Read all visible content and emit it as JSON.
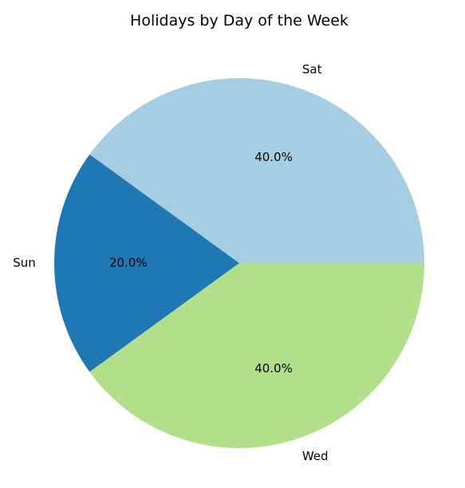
{
  "chart_data": {
    "type": "pie",
    "title": "Holidays by Day of the Week",
    "categories": [
      "Sat",
      "Sun",
      "Wed"
    ],
    "values": [
      40.0,
      20.0,
      40.0
    ],
    "percent_labels": [
      "40.0%",
      "20.0%",
      "40.0%"
    ],
    "colors": [
      "#a6cee3",
      "#1f78b4",
      "#b2df8a"
    ],
    "start_angle_deg": 0,
    "direction": "counterclockwise",
    "legend": "none"
  }
}
